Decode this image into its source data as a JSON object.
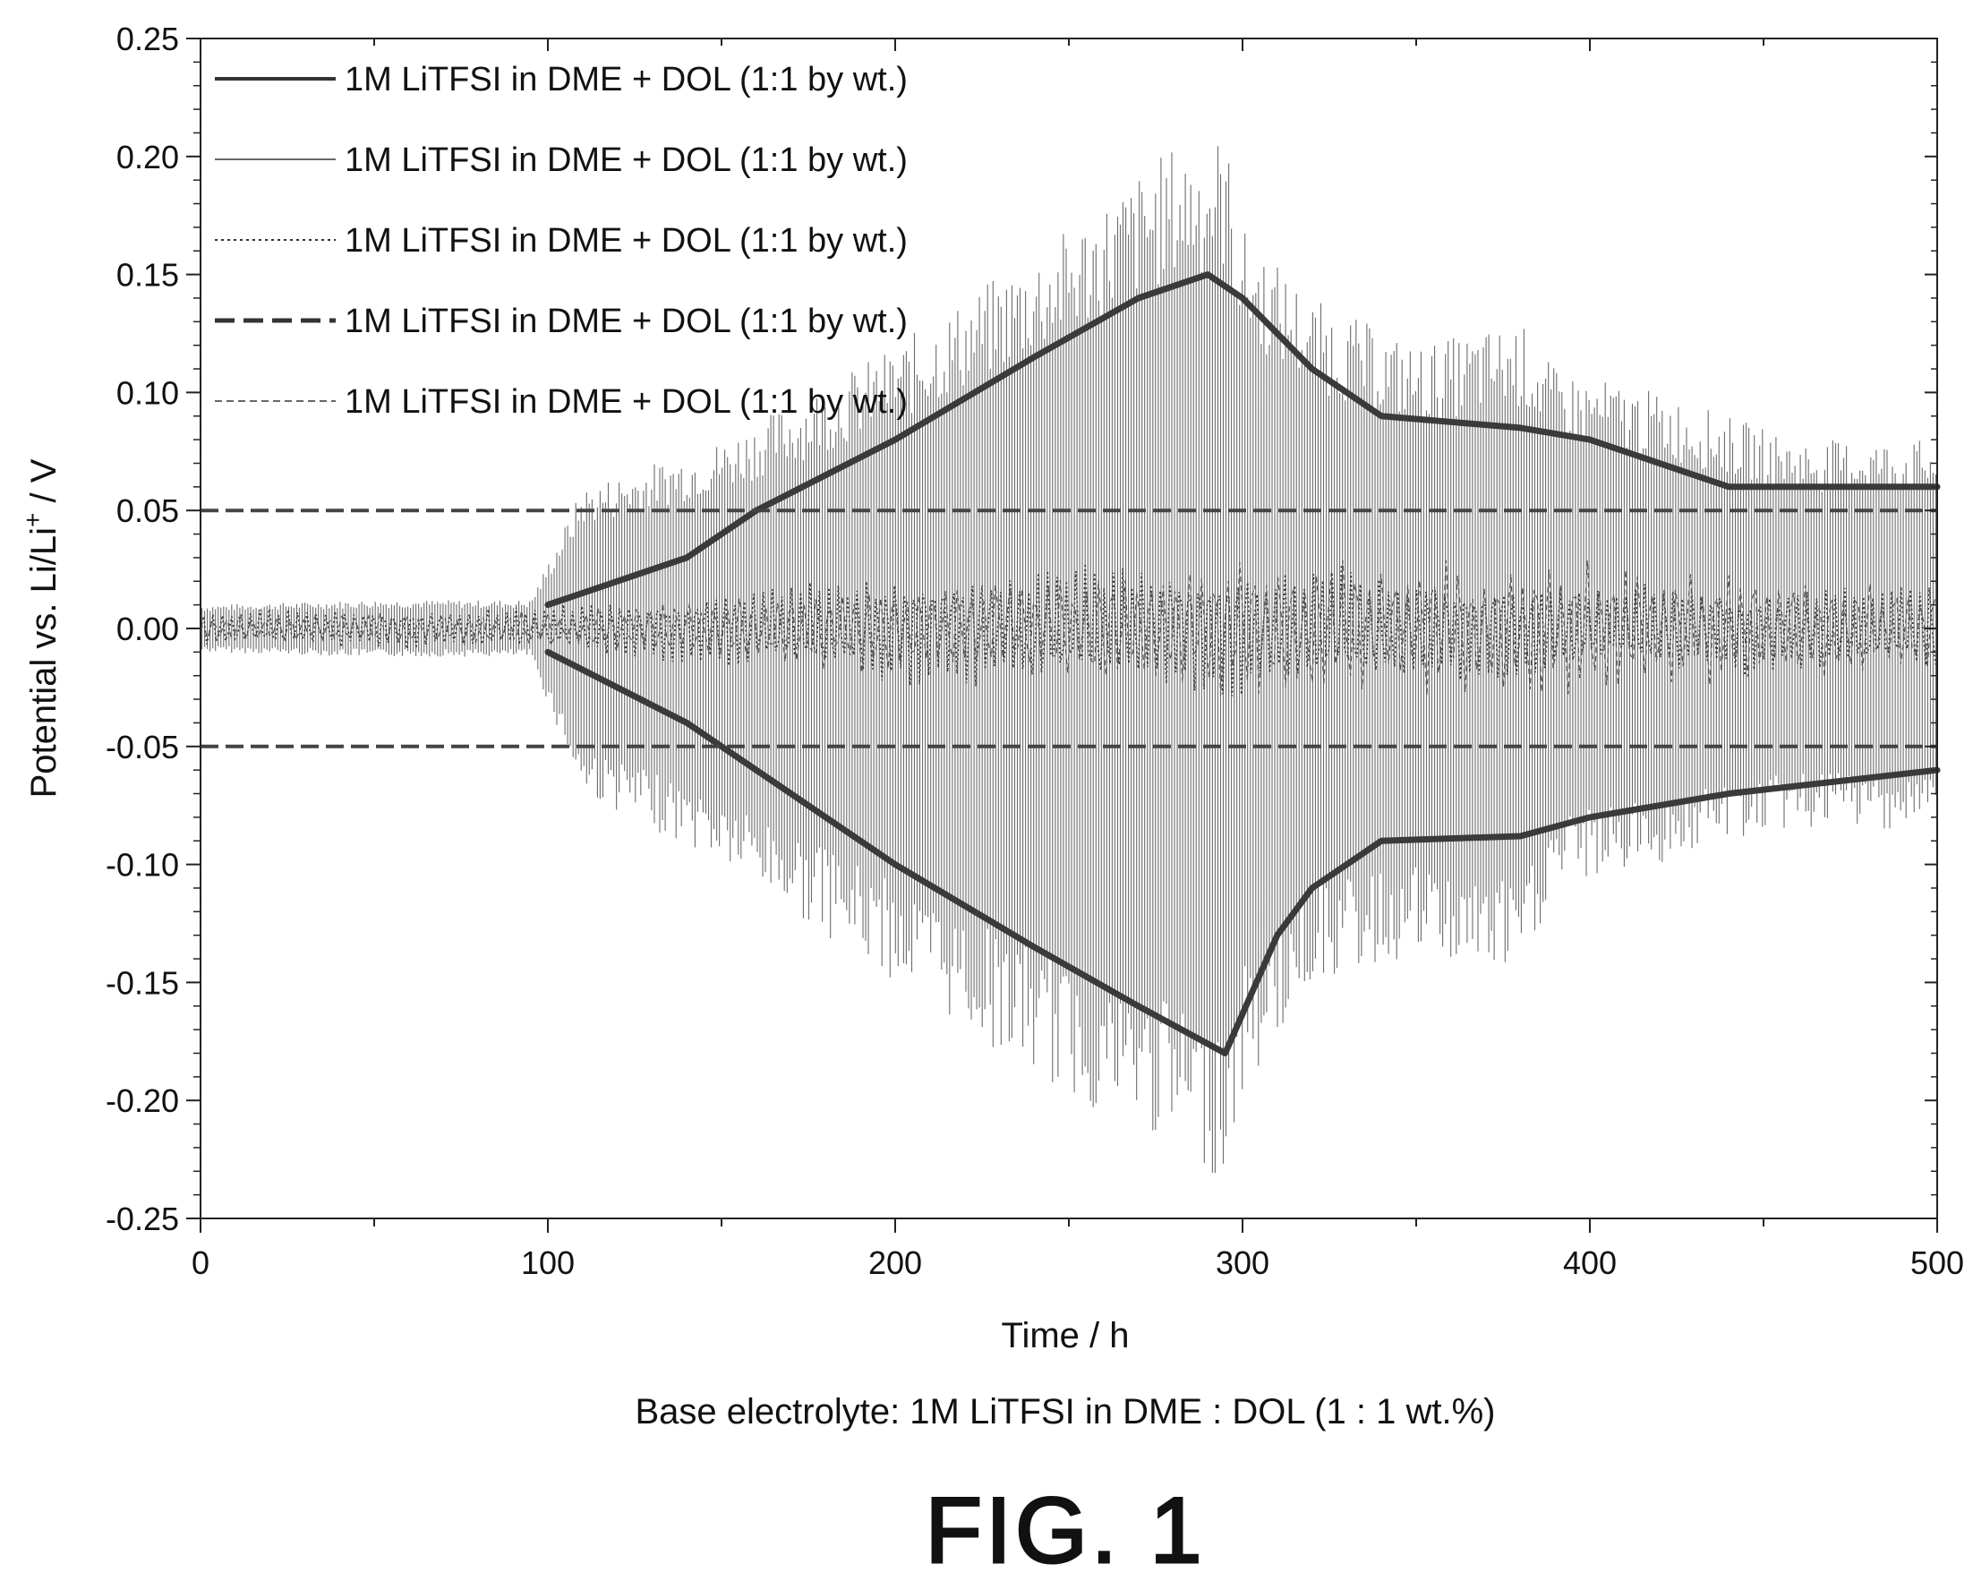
{
  "chart_data": {
    "type": "line",
    "title": "",
    "xlabel": "Time / h",
    "ylabel": "Potential vs. Li/Li",
    "ylabel_sup": "+",
    "ylabel_unit": " / V",
    "xlim": [
      0,
      500
    ],
    "ylim": [
      -0.25,
      0.25
    ],
    "x_ticks": [
      "0",
      "100",
      "200",
      "300",
      "400",
      "500"
    ],
    "y_ticks": [
      "0.25",
      "0.20",
      "0.15",
      "0.10",
      "0.05",
      "0.00",
      "-0.05",
      "-0.10",
      "-0.15",
      "-0.20",
      "-0.25"
    ],
    "grid": false,
    "legend_position": "top-left",
    "caption": "Base electrolyte: 1M LiTFSI in DME : DOL (1 : 1 wt.%)",
    "series": [
      {
        "name": "1M LiTFSI in DME + DOL (1:1 by wt.)",
        "style": "solid-thick",
        "envelope": [
          [
            0,
            0.01
          ],
          [
            50,
            0.012
          ],
          [
            95,
            0.012
          ],
          [
            110,
            0.06
          ],
          [
            150,
            0.08
          ],
          [
            200,
            0.12
          ],
          [
            250,
            0.17
          ],
          [
            280,
            0.205
          ],
          [
            295,
            0.21
          ],
          [
            300,
            0.17
          ],
          [
            320,
            0.14
          ],
          [
            350,
            0.12
          ],
          [
            380,
            0.13
          ],
          [
            390,
            0.11
          ],
          [
            420,
            0.1
          ],
          [
            440,
            0.09
          ],
          [
            460,
            0.08
          ],
          [
            500,
            0.08
          ]
        ],
        "envelope_low": [
          [
            0,
            -0.01
          ],
          [
            50,
            -0.012
          ],
          [
            95,
            -0.012
          ],
          [
            110,
            -0.07
          ],
          [
            150,
            -0.1
          ],
          [
            200,
            -0.15
          ],
          [
            250,
            -0.2
          ],
          [
            280,
            -0.22
          ],
          [
            295,
            -0.235
          ],
          [
            300,
            -0.2
          ],
          [
            320,
            -0.15
          ],
          [
            350,
            -0.14
          ],
          [
            380,
            -0.15
          ],
          [
            390,
            -0.11
          ],
          [
            420,
            -0.1
          ],
          [
            440,
            -0.09
          ],
          [
            460,
            -0.085
          ],
          [
            500,
            -0.085
          ]
        ]
      },
      {
        "name": "1M LiTFSI in DME + DOL (1:1 by wt.)",
        "style": "solid-thin",
        "upper": [
          [
            100,
            0.01
          ],
          [
            140,
            0.03
          ],
          [
            160,
            0.05
          ],
          [
            200,
            0.08
          ],
          [
            240,
            0.115
          ],
          [
            270,
            0.14
          ],
          [
            290,
            0.15
          ],
          [
            300,
            0.14
          ],
          [
            320,
            0.11
          ],
          [
            340,
            0.09
          ],
          [
            380,
            0.085
          ],
          [
            400,
            0.08
          ],
          [
            440,
            0.06
          ],
          [
            500,
            0.06
          ]
        ],
        "lower": [
          [
            100,
            -0.01
          ],
          [
            140,
            -0.04
          ],
          [
            160,
            -0.06
          ],
          [
            200,
            -0.1
          ],
          [
            240,
            -0.135
          ],
          [
            270,
            -0.16
          ],
          [
            295,
            -0.18
          ],
          [
            310,
            -0.13
          ],
          [
            320,
            -0.11
          ],
          [
            340,
            -0.09
          ],
          [
            380,
            -0.088
          ],
          [
            400,
            -0.08
          ],
          [
            440,
            -0.07
          ],
          [
            500,
            -0.06
          ]
        ]
      },
      {
        "name": "1M LiTFSI in DME + DOL (1:1 by wt.)",
        "style": "dotted",
        "amplitude": [
          [
            0,
            0.008
          ],
          [
            100,
            0.01
          ],
          [
            200,
            0.025
          ],
          [
            300,
            0.03
          ],
          [
            400,
            0.02
          ],
          [
            500,
            0.02
          ]
        ]
      },
      {
        "name": "1M LiTFSI in DME + DOL (1:1 by wt.)",
        "style": "dashed",
        "levels": [
          0.05,
          -0.05
        ],
        "x_range": [
          0,
          500
        ]
      },
      {
        "name": "1M LiTFSI in DME + DOL (1:1 by wt.)",
        "style": "thin-dashed",
        "amplitude": [
          [
            0,
            0.005
          ],
          [
            100,
            0.008
          ],
          [
            200,
            0.02
          ],
          [
            300,
            0.03
          ],
          [
            400,
            0.03
          ],
          [
            500,
            0.02
          ]
        ]
      }
    ]
  },
  "figure_label": "FIG. 1"
}
